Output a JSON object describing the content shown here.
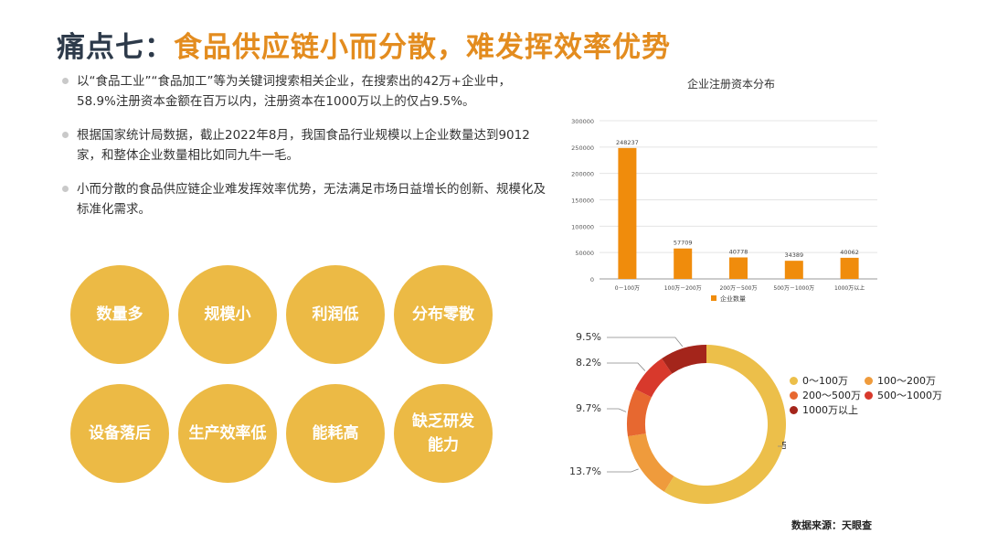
{
  "title": {
    "part1": "痛点七：",
    "part2": "食品供应链小而分散，难发挥效率优势"
  },
  "bullets": [
    "以“食品工业”“食品加工”等为关键词搜索相关企业，在搜索出的42万+企业中，58.9%注册资本金额在百万以内，注册资本在1000万以上的仅占9.5%。",
    "根据国家统计局数据，截止2022年8月，我国食品行业规模以上企业数量达到9012家，和整体企业数量相比如同九牛一毛。",
    "小而分散的食品供应链企业难发挥效率优势，无法满足市场日益增长的创新、规模化及标准化需求。"
  ],
  "circles": [
    "数量多",
    "规模小",
    "利润低",
    "分布零散",
    "设备落后",
    "生产效率低",
    "能耗高",
    "缺乏研发\n能力"
  ],
  "source": "数据来源：天眼查",
  "colors": {
    "title_dark": "#2d3a4a",
    "accent": "#e38c1f",
    "circle": "#ecba45",
    "bar": "#f08c0c"
  },
  "chart_data": [
    {
      "type": "bar",
      "title": "企业注册资本分布",
      "categories": [
        "0－100万",
        "100万－200万",
        "200万－500万",
        "500万－1000万",
        "1000万以上"
      ],
      "series": [
        {
          "name": "企业数量",
          "values": [
            248237,
            57709,
            40778,
            34389,
            40062
          ]
        }
      ],
      "ylim": [
        0,
        300000
      ],
      "yticks": [
        0,
        50000,
        100000,
        150000,
        200000,
        250000,
        300000
      ],
      "grid": true,
      "legend": "bottom"
    },
    {
      "type": "pie",
      "donut": true,
      "categories": [
        "0～100万",
        "100～200万",
        "200～500万",
        "500～1000万",
        "1000万以上"
      ],
      "values": [
        58.9,
        13.7,
        9.7,
        8.2,
        9.5
      ],
      "labels": [
        "58.9%",
        "13.7%",
        "9.7%",
        "8.2%",
        "9.5%"
      ],
      "colors": [
        "#ecbf4a",
        "#ef9b3c",
        "#e76830",
        "#d8392c",
        "#a4251b"
      ],
      "legend": "right"
    }
  ]
}
